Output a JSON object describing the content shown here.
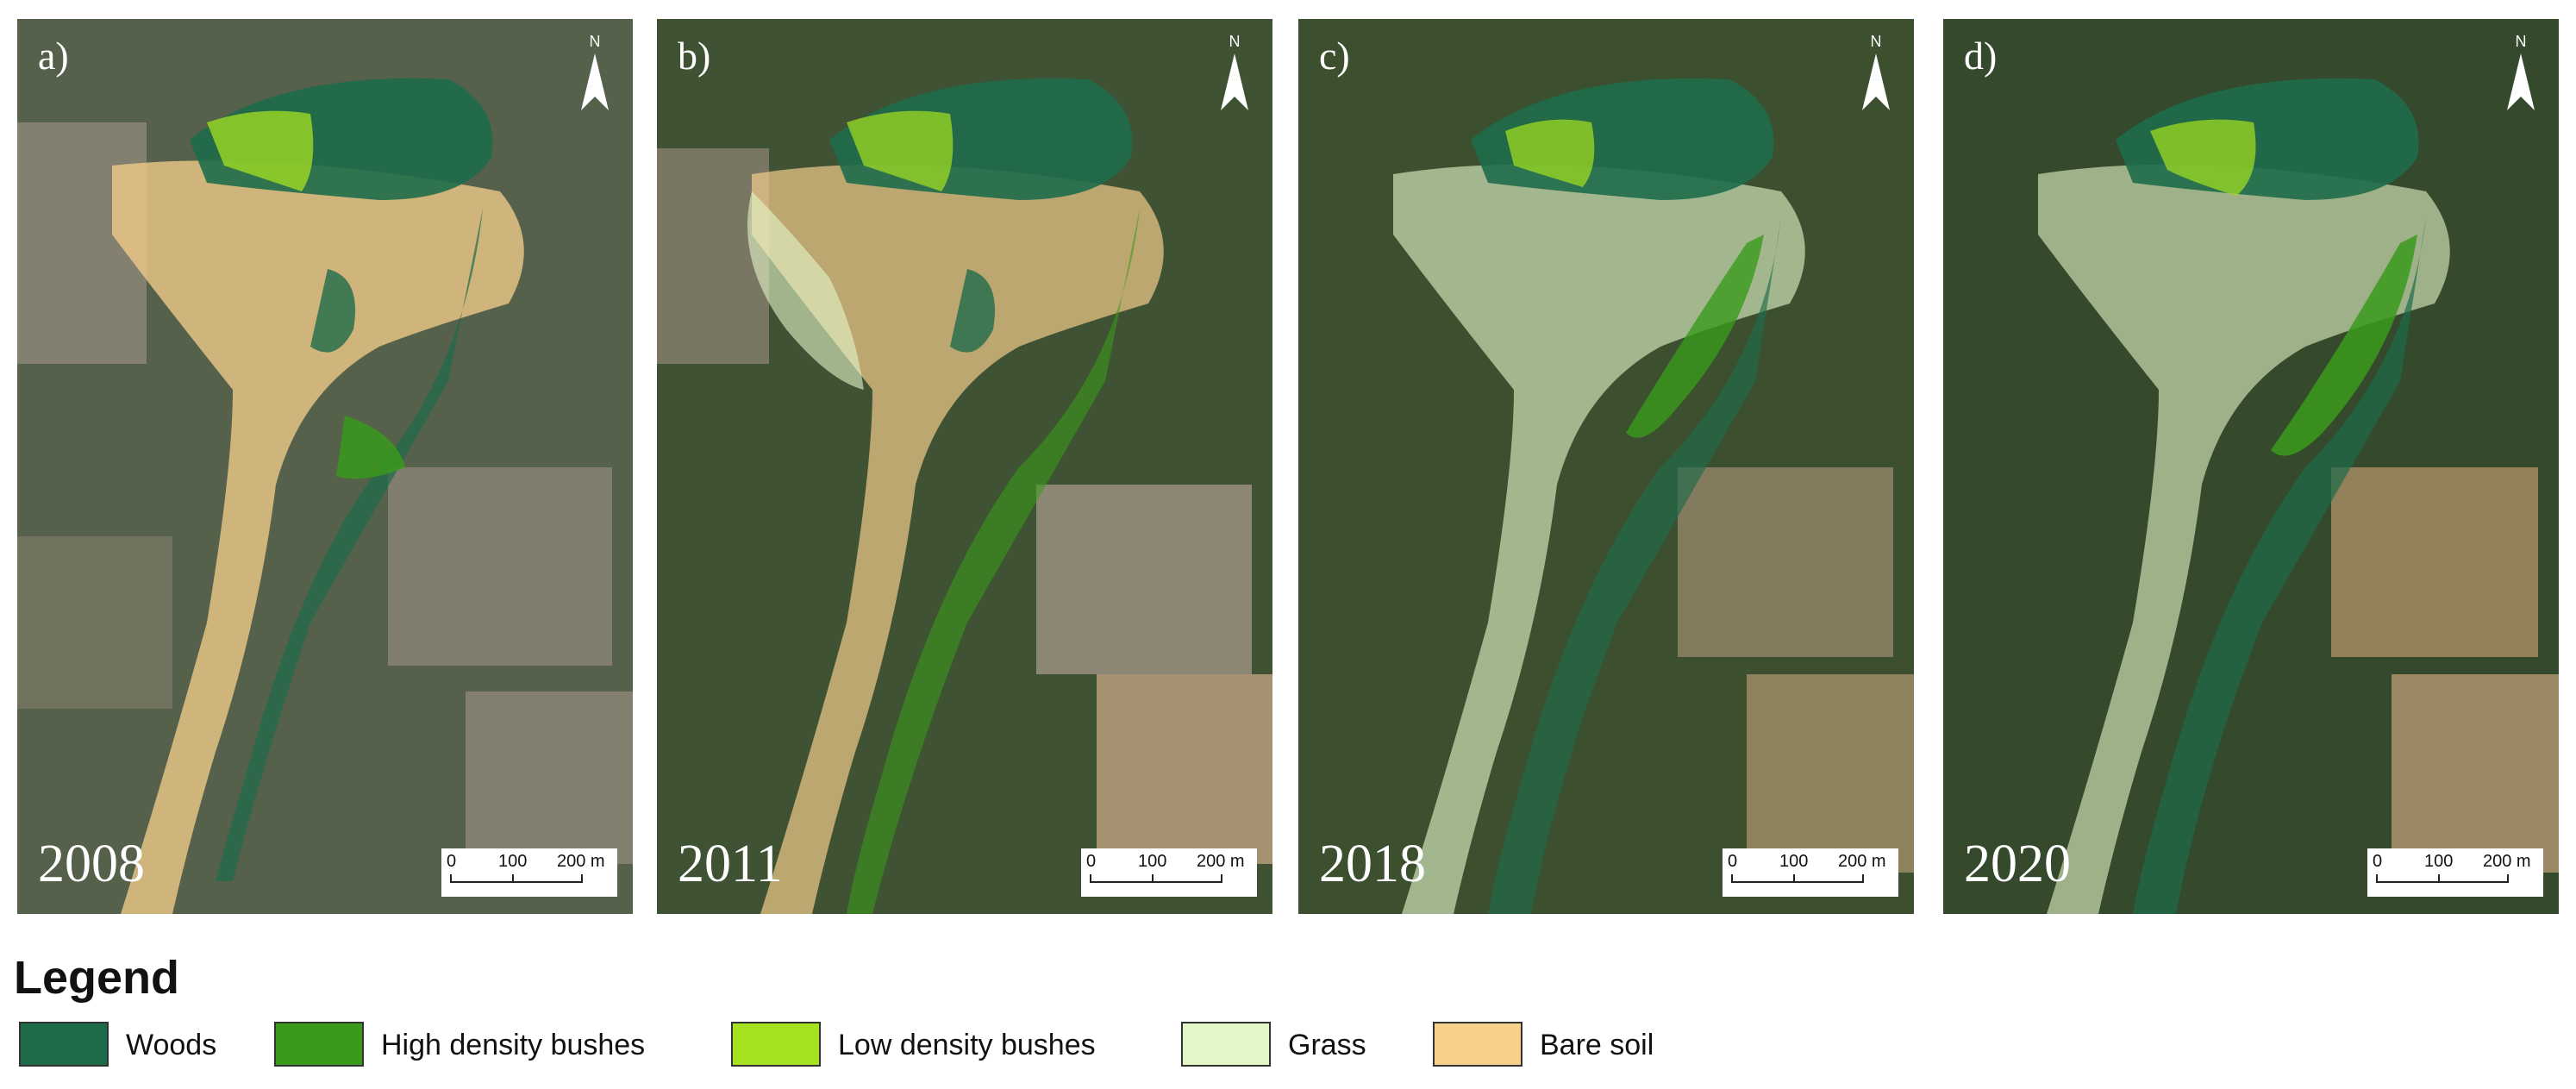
{
  "panels": [
    {
      "label": "a)",
      "year": "2008"
    },
    {
      "label": "b)",
      "year": "2011"
    },
    {
      "label": "c)",
      "year": "2018"
    },
    {
      "label": "d)",
      "year": "2020"
    }
  ],
  "north_arrow": {
    "letter": "N"
  },
  "scale_bar": {
    "ticks": [
      "0",
      "100",
      "200 m"
    ]
  },
  "legend": {
    "title": "Legend",
    "items": [
      {
        "label": "Woods",
        "color": "#1e6b4a"
      },
      {
        "label": "High density bushes",
        "color": "#3a9a1c"
      },
      {
        "label": "Low density bushes",
        "color": "#a6e21f"
      },
      {
        "label": "Grass",
        "color": "#e4f7c8"
      },
      {
        "label": "Bare soil",
        "color": "#f7d08a"
      }
    ]
  },
  "colors": {
    "map_background": "#3b4a30",
    "field_dry": "#8c8272",
    "field_green": "#5f6f3d"
  }
}
